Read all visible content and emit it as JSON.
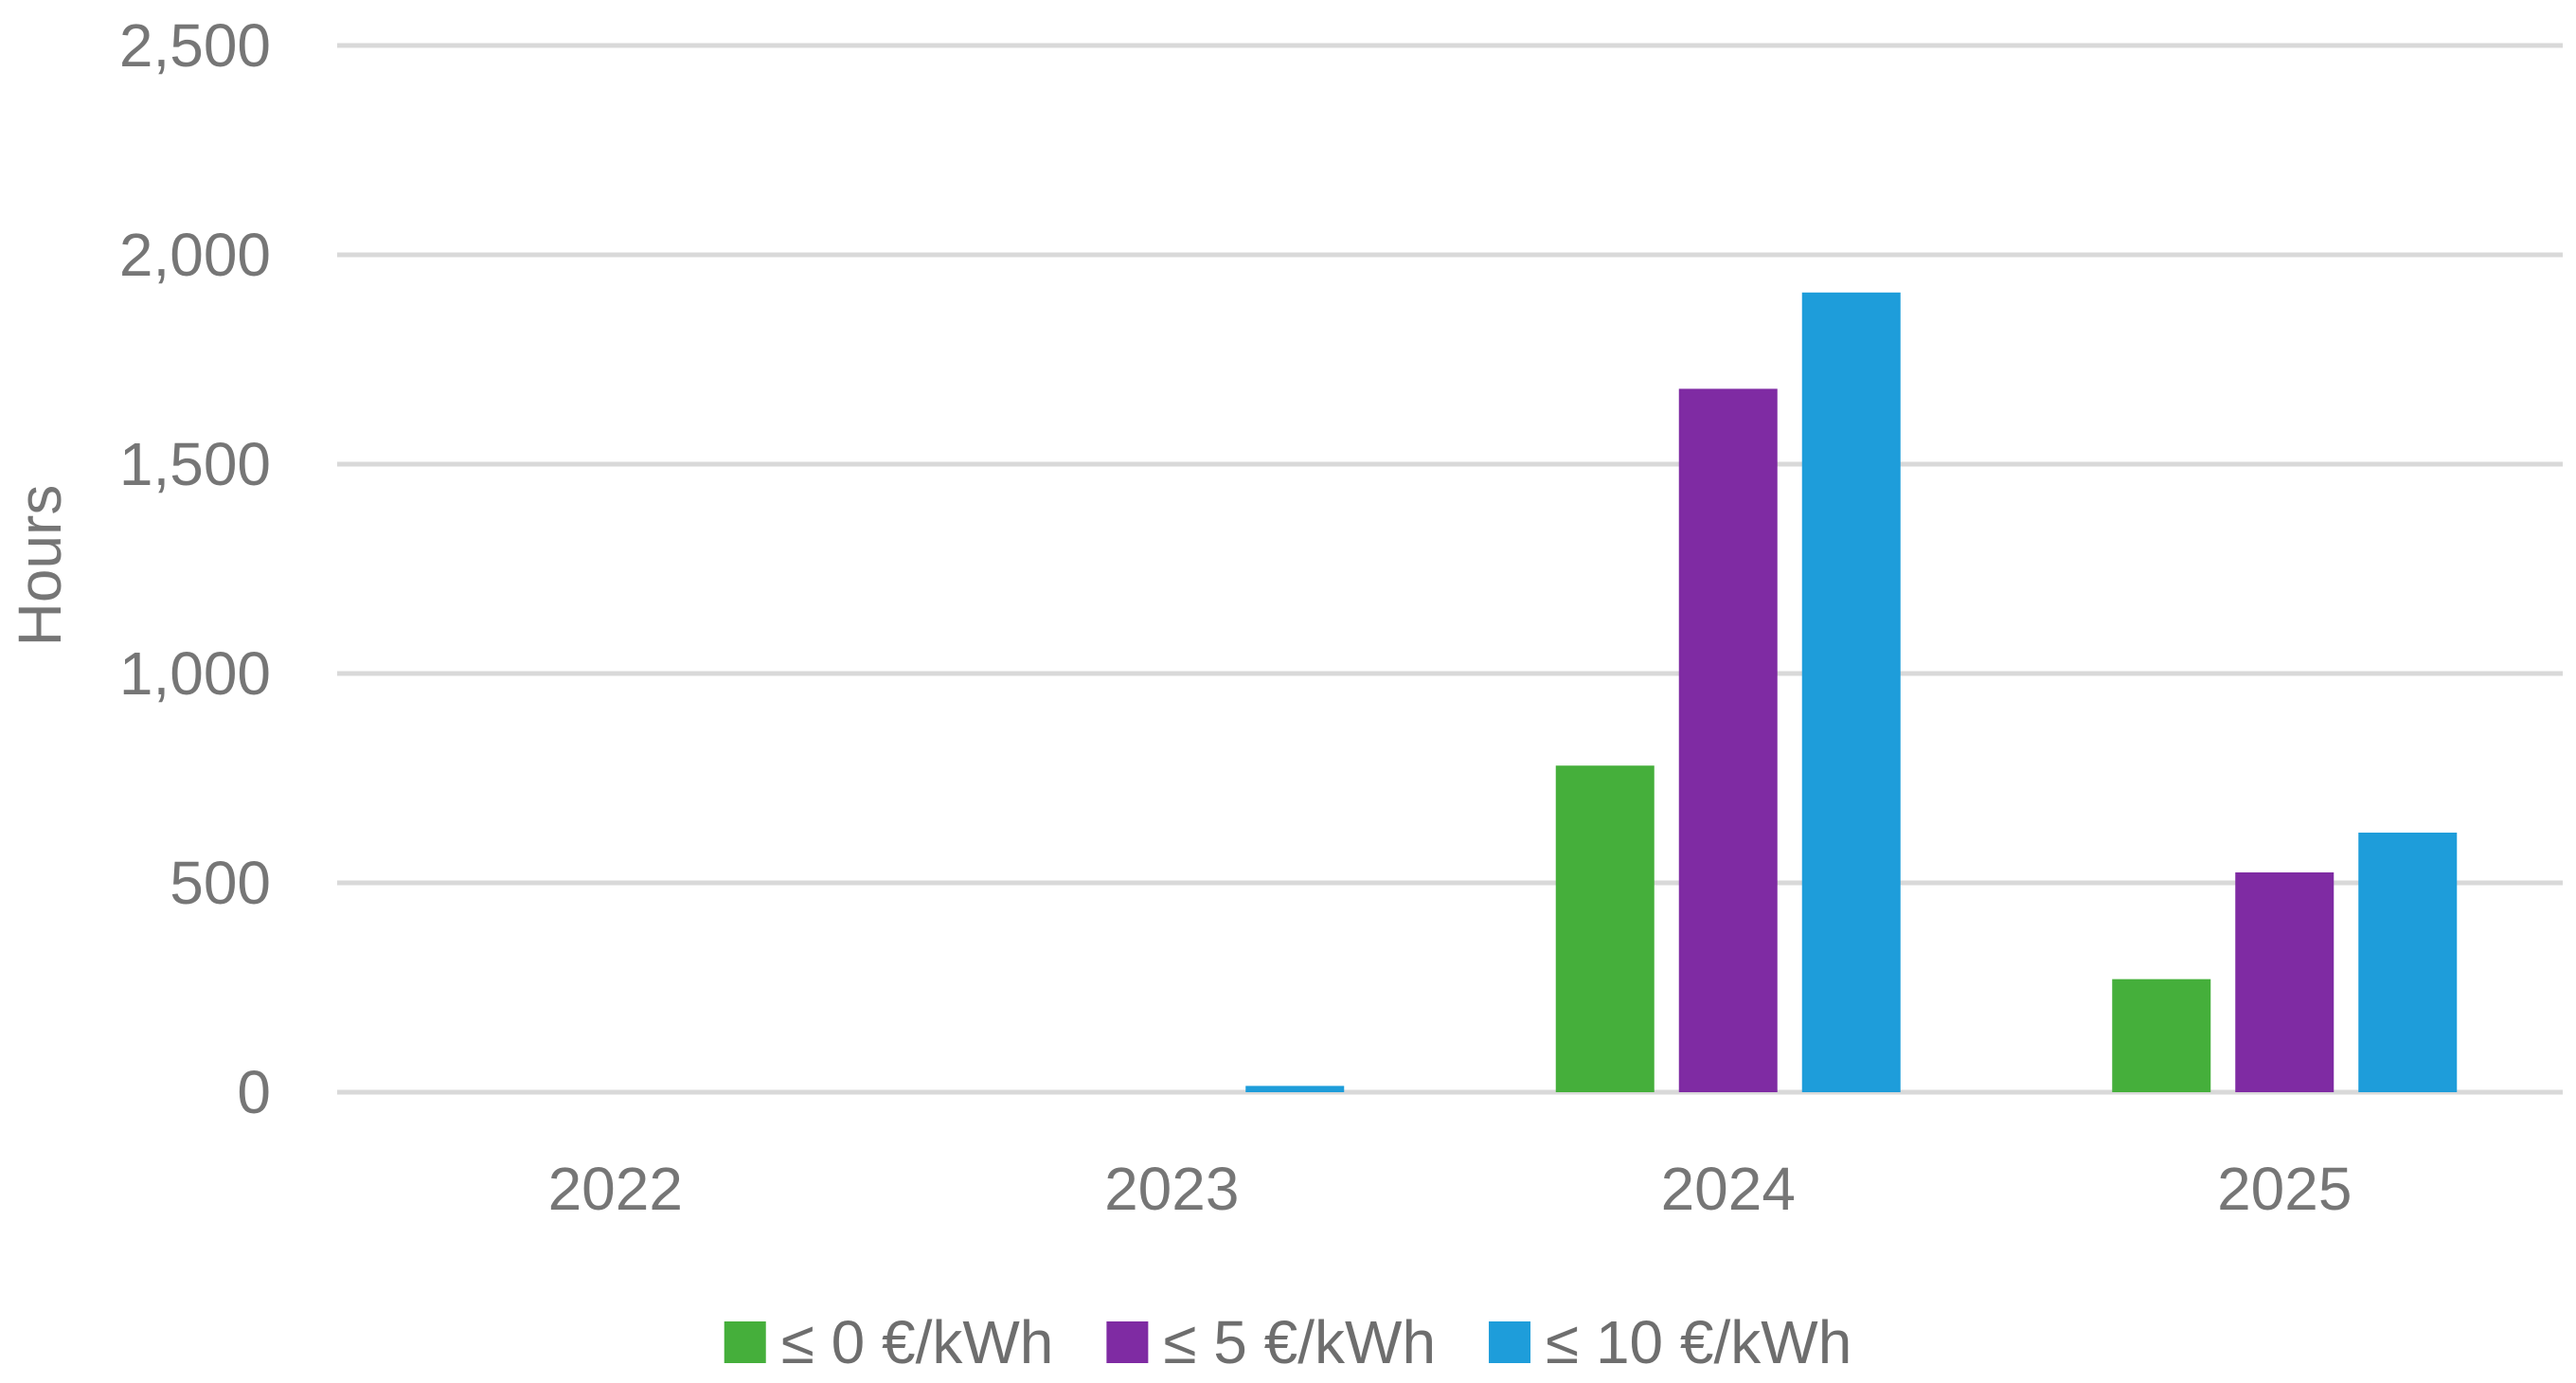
{
  "chart_data": {
    "type": "bar",
    "title": "",
    "xlabel": "",
    "ylabel": "Hours",
    "ylim": [
      0,
      2500
    ],
    "yticks": [
      0,
      500,
      1000,
      1500,
      2000,
      2500
    ],
    "ytick_labels": [
      "0",
      "500",
      "1,000",
      "1,500",
      "2,000",
      "2,500"
    ],
    "grid": true,
    "legend_position": "bottom",
    "categories": [
      "2022",
      "2023",
      "2024",
      "2025"
    ],
    "series": [
      {
        "name": "≤ 0 €/kWh",
        "color": "#45af3b",
        "values": [
          0,
          0,
          780,
          270
        ]
      },
      {
        "name": "≤ 5 €/kWh",
        "color": "#7f2ba3",
        "values": [
          0,
          0,
          1680,
          525
        ]
      },
      {
        "name": "≤ 10 €/kWh",
        "color": "#1e9dda",
        "values": [
          0,
          15,
          1910,
          620
        ]
      }
    ],
    "colors": {
      "gridline": "#d9d9d9",
      "text": "#767676"
    }
  }
}
